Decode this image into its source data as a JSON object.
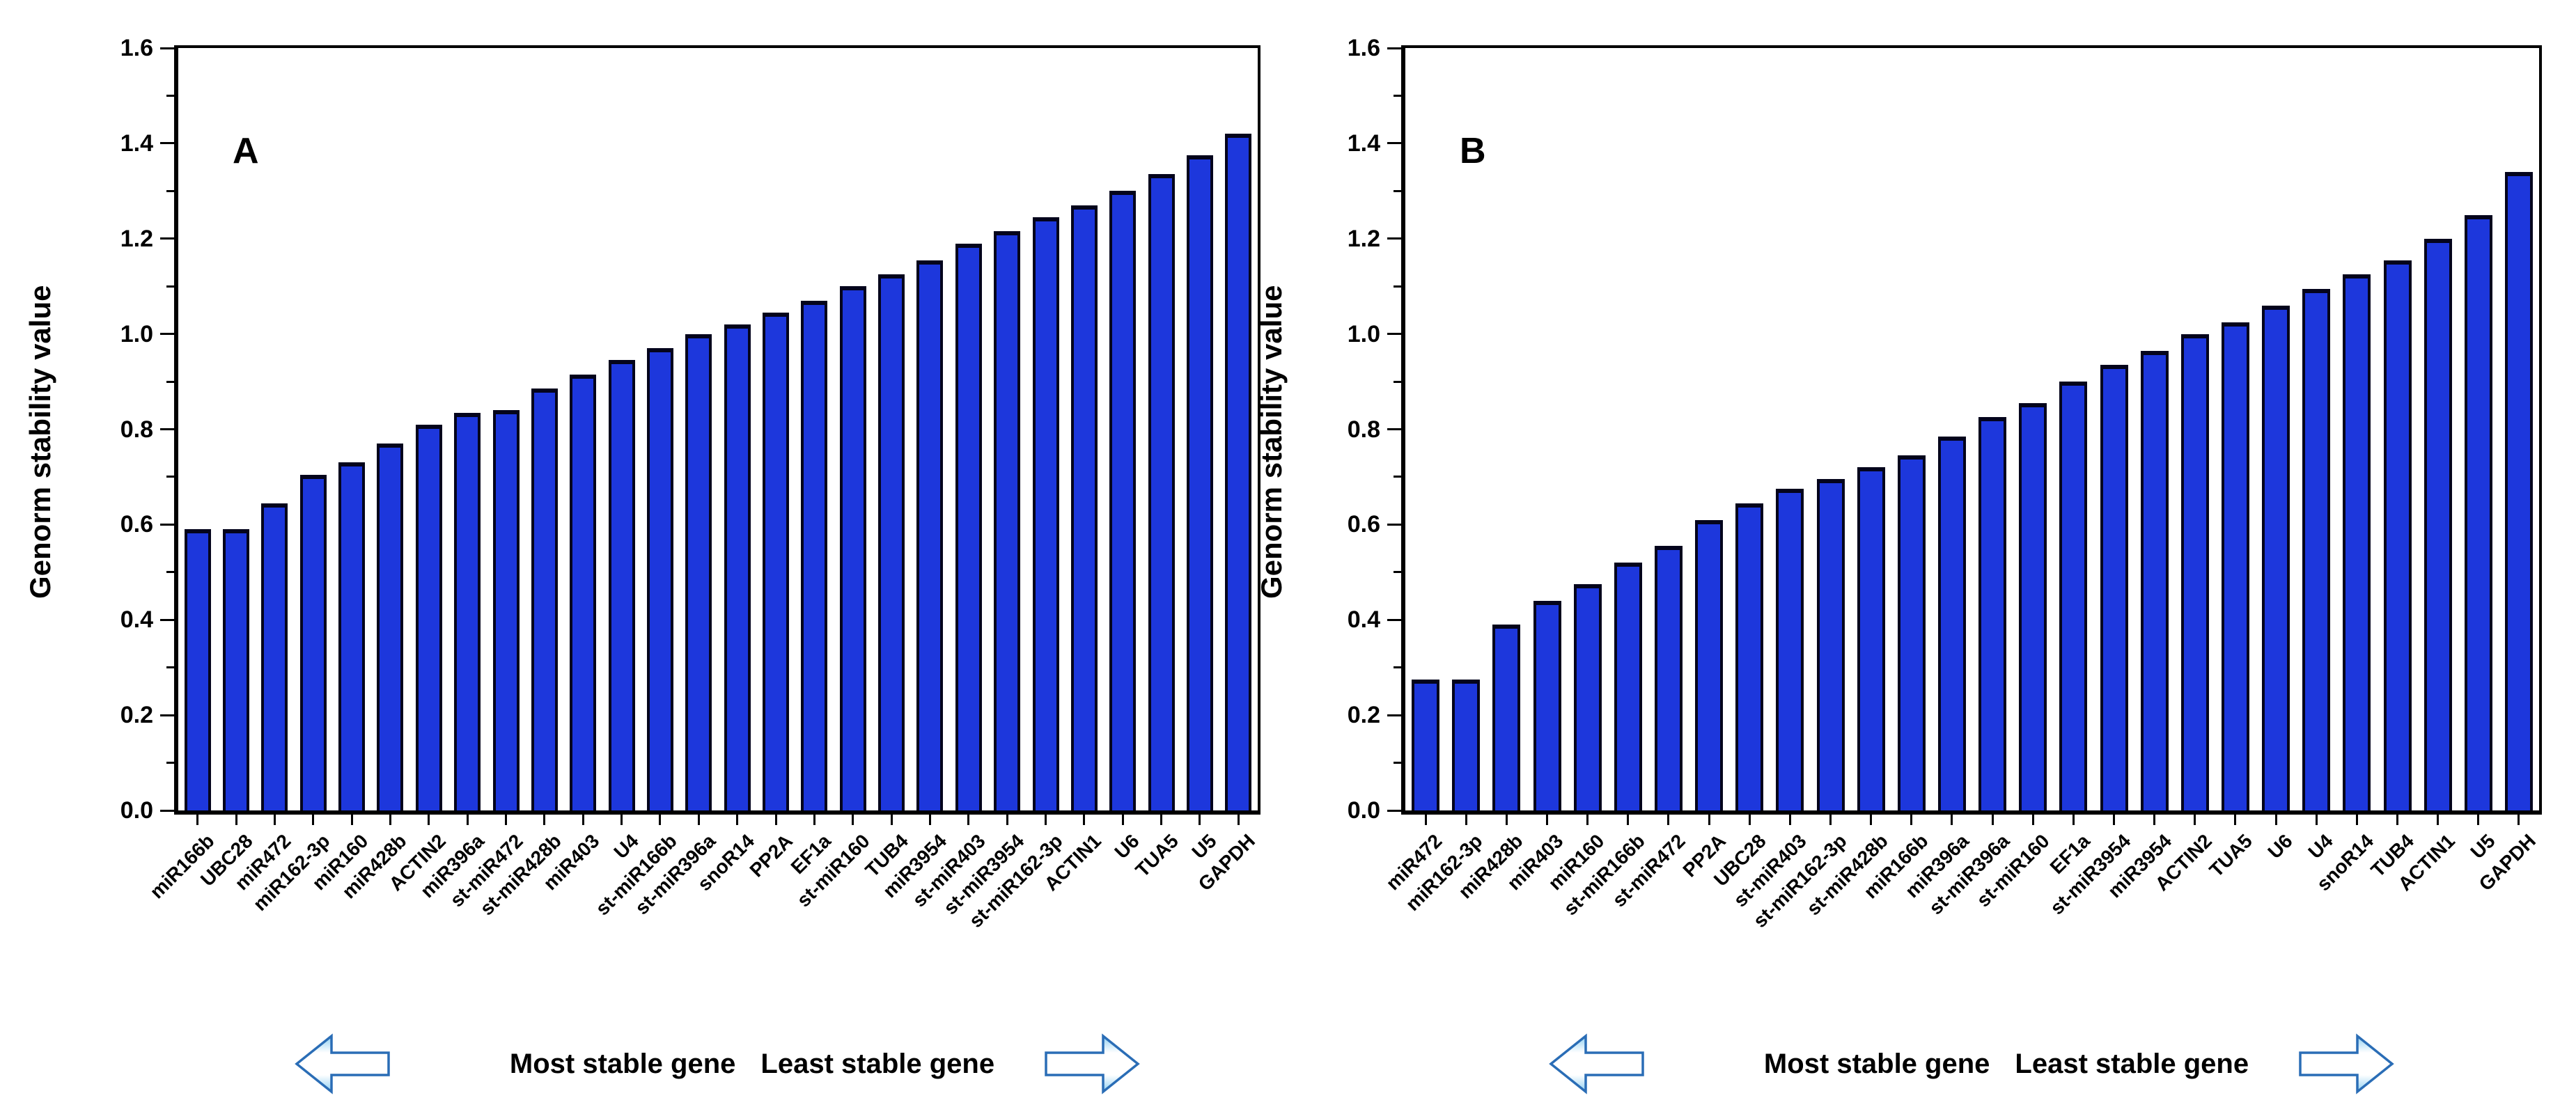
{
  "figure": {
    "ylabel": "Genorm stability value",
    "caption_most": "Most stable gene",
    "caption_least": "Least stable gene",
    "icons": {
      "left_arrow": "block-arrow-left",
      "right_arrow": "block-arrow-right"
    },
    "colors": {
      "bar_fill": "#1d37dc",
      "bar_edge": "#04041c",
      "axis": "#000000",
      "arrow_stroke": "#2a6db6",
      "arrow_fill_light": "#8fd0f2"
    },
    "y_axis": {
      "min": 0.0,
      "max": 1.6,
      "major_step": 0.2,
      "minor_step": 0.1,
      "tick_labels": [
        "0.0",
        "0.2",
        "0.4",
        "0.6",
        "0.8",
        "1.0",
        "1.2",
        "1.4",
        "1.6"
      ]
    }
  },
  "chart_data": [
    {
      "type": "bar",
      "panel_label": "A",
      "title": "",
      "xlabel": "",
      "ylabel": "Genorm stability value",
      "ylim": [
        0.0,
        1.6
      ],
      "grid": false,
      "legend": "none",
      "categories": [
        "miR166b",
        "UBC28",
        "miR472",
        "miR162-3p",
        "miR160",
        "miR428b",
        "ACTIN2",
        "miR396a",
        "st-miR472",
        "st-miR428b",
        "miR403",
        "U4",
        "st-miR166b",
        "st-miR396a",
        "snoR14",
        "PP2A",
        "EF1a",
        "st-miR160",
        "TUB4",
        "miR3954",
        "st-miR403",
        "st-miR3954",
        "st-miR162-3p",
        "ACTIN1",
        "U6",
        "TUA5",
        "U5",
        "GAPDH"
      ],
      "values": [
        0.59,
        0.59,
        0.645,
        0.705,
        0.73,
        0.77,
        0.81,
        0.835,
        0.84,
        0.885,
        0.915,
        0.945,
        0.97,
        1.0,
        1.02,
        1.045,
        1.07,
        1.1,
        1.125,
        1.155,
        1.19,
        1.215,
        1.245,
        1.27,
        1.3,
        1.335,
        1.375,
        1.42
      ],
      "annotation": "Most stable gene  Least stable gene"
    },
    {
      "type": "bar",
      "panel_label": "B",
      "title": "",
      "xlabel": "",
      "ylabel": "Genorm stability value",
      "ylim": [
        0.0,
        1.6
      ],
      "grid": false,
      "legend": "none",
      "categories": [
        "miR472",
        "miR162-3p",
        "miR428b",
        "miR403",
        "miR160",
        "st-miR166b",
        "st-miR472",
        "PP2A",
        "UBC28",
        "st-miR403",
        "st-miR162-3p",
        "st-miR428b",
        "miR166b",
        "miR396a",
        "st-miR396a",
        "st-miR160",
        "EF1a",
        "st-miR3954",
        "miR3954",
        "ACTIN2",
        "TUA5",
        "U6",
        "U4",
        "snoR14",
        "TUB4",
        "ACTIN1",
        "U5",
        "GAPDH"
      ],
      "values": [
        0.275,
        0.275,
        0.39,
        0.44,
        0.475,
        0.52,
        0.555,
        0.61,
        0.645,
        0.675,
        0.695,
        0.72,
        0.745,
        0.785,
        0.825,
        0.855,
        0.9,
        0.935,
        0.965,
        1.0,
        1.025,
        1.06,
        1.095,
        1.125,
        1.155,
        1.2,
        1.25,
        1.34
      ],
      "annotation": "Most stable gene  Least stable gene"
    }
  ]
}
